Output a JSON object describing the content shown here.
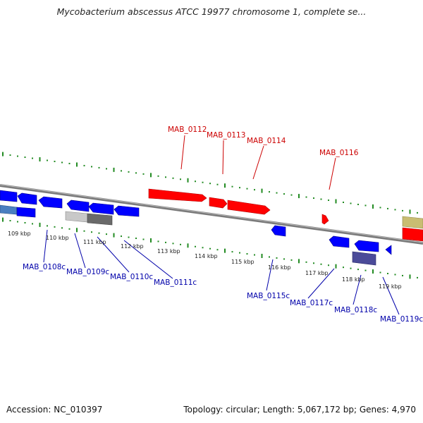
{
  "header": {
    "title": "Mycobacterium abscessus ATCC 19977 chromosome 1, complete se..."
  },
  "footer": {
    "accession": "Accession: NC_010397",
    "summary": "Topology: circular; Length: 5,067,172 bp; Genes: 4,970"
  },
  "colors": {
    "forward_gene": "#ff0000",
    "reverse_gene": "#0000ff",
    "backbone": "#808080",
    "tick": "#228B22",
    "forward_label": "#cc0000",
    "reverse_label": "#0000aa"
  },
  "scale_labels": [
    "109 kbp",
    "110 kbp",
    "111 kbp",
    "112 kbp",
    "113 kbp",
    "114 kbp",
    "115 kbp",
    "116 kbp",
    "117 kbp",
    "118 kbp",
    "119 kbp"
  ],
  "forward_gene_labels": [
    "MAB_0112",
    "MAB_0113",
    "MAB_0114",
    "MAB_0116"
  ],
  "reverse_gene_labels": [
    "MAB_0108c",
    "MAB_0109c",
    "MAB_0110c",
    "MAB_0111c",
    "MAB_0115c",
    "MAB_0117c",
    "MAB_0118c",
    "MAB_0119c"
  ]
}
